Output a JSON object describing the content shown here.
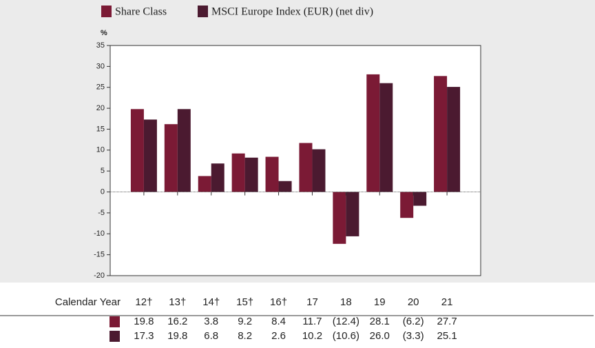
{
  "chart_data": {
    "type": "bar",
    "ylabel": "%",
    "xlabel": "Calendar Year",
    "categories": [
      "12†",
      "13†",
      "14†",
      "15†",
      "16†",
      "17",
      "18",
      "19",
      "20",
      "21"
    ],
    "series": [
      {
        "name": "Share Class",
        "color": "#7b1a35",
        "values": [
          19.8,
          16.2,
          3.8,
          9.2,
          8.4,
          11.7,
          -12.4,
          28.1,
          -6.2,
          27.7
        ],
        "value_labels": [
          "19.8",
          "16.2",
          "3.8",
          "9.2",
          "8.4",
          "11.7",
          "(12.4)",
          "28.1",
          "(6.2)",
          "27.7"
        ]
      },
      {
        "name": "MSCI Europe Index (EUR) (net div)",
        "color": "#4b1a30",
        "values": [
          17.3,
          19.8,
          6.8,
          8.2,
          2.6,
          10.2,
          -10.6,
          26.0,
          -3.3,
          25.1
        ],
        "value_labels": [
          "17.3",
          "19.8",
          "6.8",
          "8.2",
          "2.6",
          "10.2",
          "(10.6)",
          "26.0",
          "(3.3)",
          "25.1"
        ]
      }
    ],
    "ylim": [
      -20,
      35
    ],
    "yticks": [
      -20,
      -15,
      -10,
      -5,
      0,
      5,
      10,
      15,
      20,
      25,
      30,
      35
    ],
    "legend": "top"
  }
}
